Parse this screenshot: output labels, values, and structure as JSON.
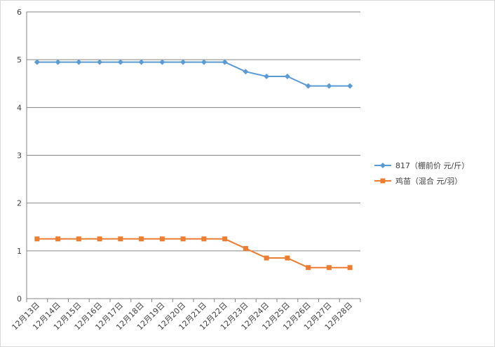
{
  "chart_data": {
    "type": "line",
    "categories": [
      "12月13日",
      "12月14日",
      "12月15日",
      "12月16日",
      "12月17日",
      "12月18日",
      "12月19日",
      "12月20日",
      "12月21日",
      "12月22日",
      "12月23日",
      "12月24日",
      "12月25日",
      "12月26日",
      "12月27日",
      "12月28日"
    ],
    "series": [
      {
        "name": "817（棚前价 元/斤）",
        "color": "#5B9BD5",
        "marker": "diamond",
        "values": [
          4.95,
          4.95,
          4.95,
          4.95,
          4.95,
          4.95,
          4.95,
          4.95,
          4.95,
          4.95,
          4.75,
          4.65,
          4.65,
          4.45,
          4.45,
          4.45
        ]
      },
      {
        "name": "鸡苗（混合 元/羽）",
        "color": "#ED7D31",
        "marker": "square",
        "values": [
          1.25,
          1.25,
          1.25,
          1.25,
          1.25,
          1.25,
          1.25,
          1.25,
          1.25,
          1.25,
          1.05,
          0.85,
          0.85,
          0.65,
          0.65,
          0.65
        ]
      }
    ],
    "ylim": [
      0,
      6
    ],
    "yticks": [
      "0",
      "1",
      "2",
      "3",
      "4",
      "5",
      "6"
    ],
    "grid": true,
    "legend": "right"
  }
}
